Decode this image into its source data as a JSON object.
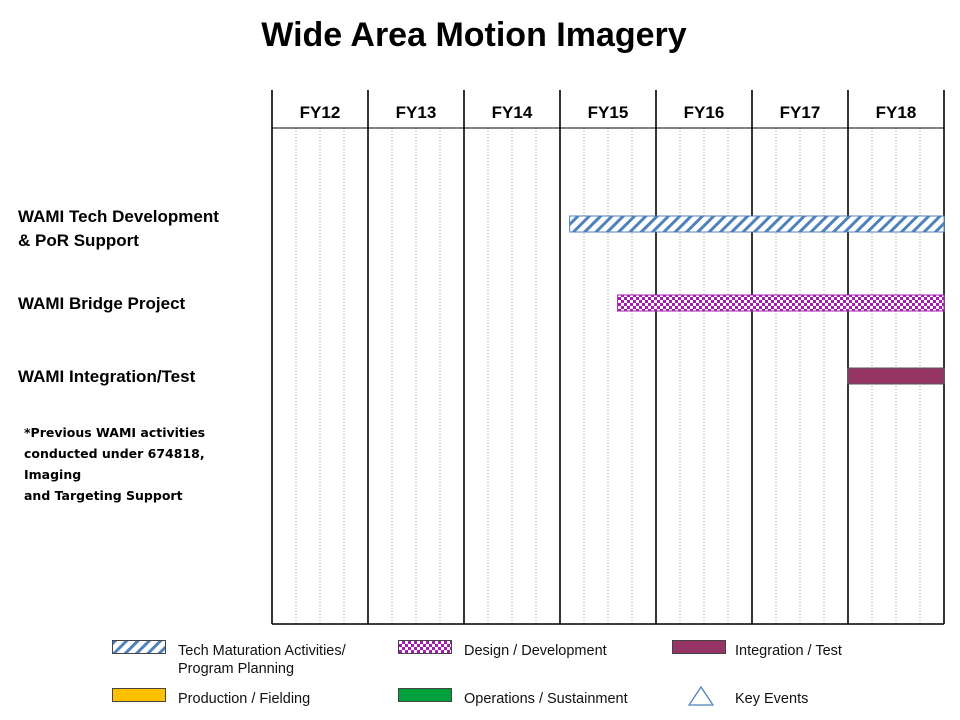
{
  "title": "Wide Area Motion Imagery",
  "note": "*Previous WAMI activities\nconducted under 674818, Imaging\nand Targeting Support",
  "colors": {
    "tech_maturation": "#4f81bd",
    "design_development": "#a51cae",
    "integration_test": "#953465",
    "production_fielding": "#ffc000",
    "operations_sustainment": "#00a03c",
    "key_events": "#4f81bd"
  },
  "chart_data": {
    "type": "gantt",
    "title": "Wide Area Motion Imagery",
    "categories": [
      "FY12",
      "FY13",
      "FY14",
      "FY15",
      "FY16",
      "FY17",
      "FY18"
    ],
    "xlim": [
      12,
      19
    ],
    "rows": [
      {
        "label": "WAMI Tech Development\n& PoR Support",
        "bars": [
          {
            "start": 15.1,
            "end": 19.0,
            "style": "tech_maturation"
          }
        ]
      },
      {
        "label": "WAMI Bridge Project",
        "bars": [
          {
            "start": 15.6,
            "end": 19.0,
            "style": "design_development"
          }
        ]
      },
      {
        "label": "WAMI Integration/Test",
        "bars": [
          {
            "start": 18.0,
            "end": 19.0,
            "style": "integration_test"
          }
        ]
      }
    ],
    "legend": [
      {
        "key": "tech_maturation",
        "label": "Tech Maturation Activities/\nProgram Planning"
      },
      {
        "key": "design_development",
        "label": "Design / Development"
      },
      {
        "key": "integration_test",
        "label": "Integration  / Test"
      },
      {
        "key": "production_fielding",
        "label": "Production / Fielding"
      },
      {
        "key": "operations_sustainment",
        "label": "Operations / Sustainment"
      },
      {
        "key": "key_events",
        "label": "Key Events"
      }
    ]
  }
}
